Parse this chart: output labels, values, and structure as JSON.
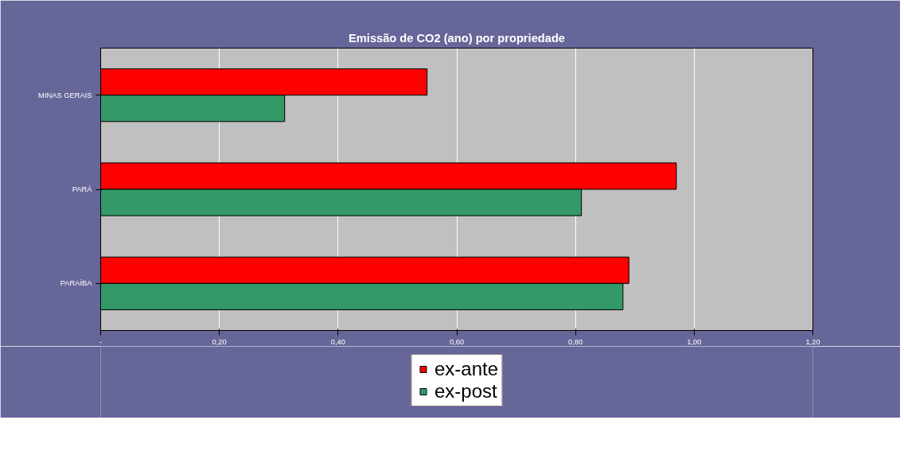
{
  "chart_data": {
    "type": "bar",
    "orientation": "horizontal",
    "title": "Emissão de CO2 (ano) por propriedade",
    "categories": [
      "MINAS GERAIS",
      "PARÁ",
      "PARAÍBA"
    ],
    "series": [
      {
        "name": "ex-ante",
        "color": "#ff0000",
        "values": [
          0.55,
          0.97,
          0.89
        ]
      },
      {
        "name": "ex-post",
        "color": "#339966",
        "values": [
          0.31,
          0.81,
          0.88
        ]
      }
    ],
    "xlim": [
      0,
      1.2
    ],
    "xticks": [
      {
        "value": 0,
        "label": "-"
      },
      {
        "value": 0.2,
        "label": "0,20"
      },
      {
        "value": 0.4,
        "label": "0,40"
      },
      {
        "value": 0.6,
        "label": "0,60"
      },
      {
        "value": 0.8,
        "label": "0,80"
      },
      {
        "value": 1.0,
        "label": "1,00"
      },
      {
        "value": 1.2,
        "label": "1,20"
      }
    ],
    "grid": "x",
    "legend": "bottom"
  }
}
